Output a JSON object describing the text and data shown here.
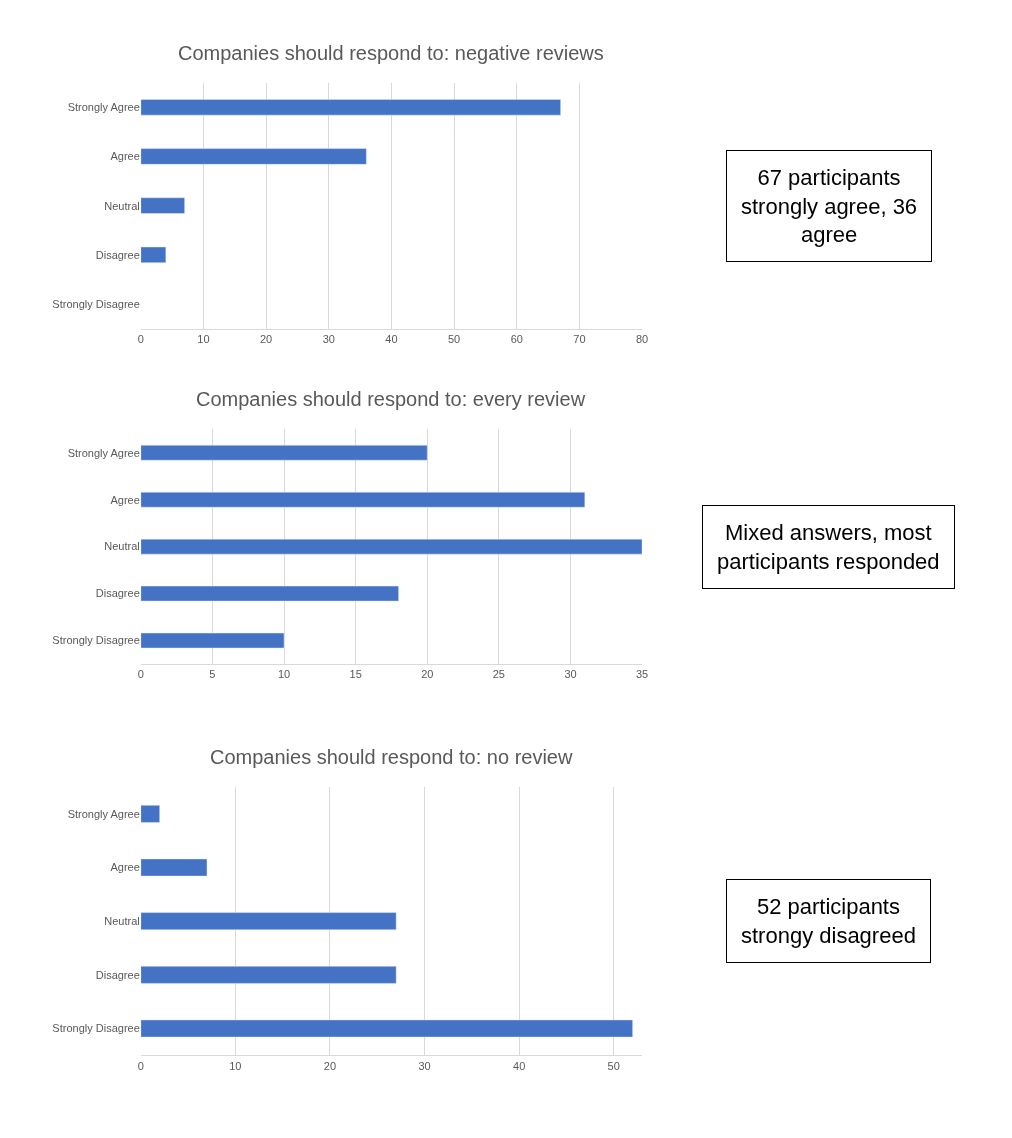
{
  "chart_data": [
    {
      "type": "bar",
      "orientation": "horizontal",
      "title": "Companies should respond to: negative reviews",
      "categories": [
        "Strongly Agree",
        "Agree",
        "Neutral",
        "Disagree",
        "Strongly Disagree"
      ],
      "values": [
        67,
        36,
        7,
        4,
        null
      ],
      "color": "#4472c4",
      "xlim": [
        0,
        80
      ],
      "xticks": [
        0,
        10,
        20,
        30,
        40,
        50,
        60,
        70,
        80
      ],
      "grid": "x",
      "annotations": [
        "67 participants strongly agree, 36 agree"
      ]
    },
    {
      "type": "bar",
      "orientation": "horizontal",
      "title": "Companies should respond to: every review",
      "categories": [
        "Strongly Agree",
        "Agree",
        "Neutral",
        "Disagree",
        "Strongly Disagree"
      ],
      "values": [
        20,
        31,
        35,
        18,
        10
      ],
      "color": "#4472c4",
      "xlim": [
        0,
        35
      ],
      "xticks": [
        0,
        5,
        10,
        15,
        20,
        25,
        30,
        35
      ],
      "grid": "x",
      "annotations": [
        "Mixed answers, most participants responded"
      ]
    },
    {
      "type": "bar",
      "orientation": "horizontal",
      "title": "Companies should respond to: no review",
      "categories": [
        "Strongly Agree",
        "Agree",
        "Neutral",
        "Disagree",
        "Strongly Disagree"
      ],
      "values": [
        2,
        7,
        27,
        27,
        52
      ],
      "color": "#4472c4",
      "xlim": [
        0,
        53
      ],
      "xticks": [
        0,
        10,
        20,
        30,
        40,
        50
      ],
      "grid": "x",
      "annotations": [
        "52 participants strongy disagreed"
      ]
    }
  ]
}
